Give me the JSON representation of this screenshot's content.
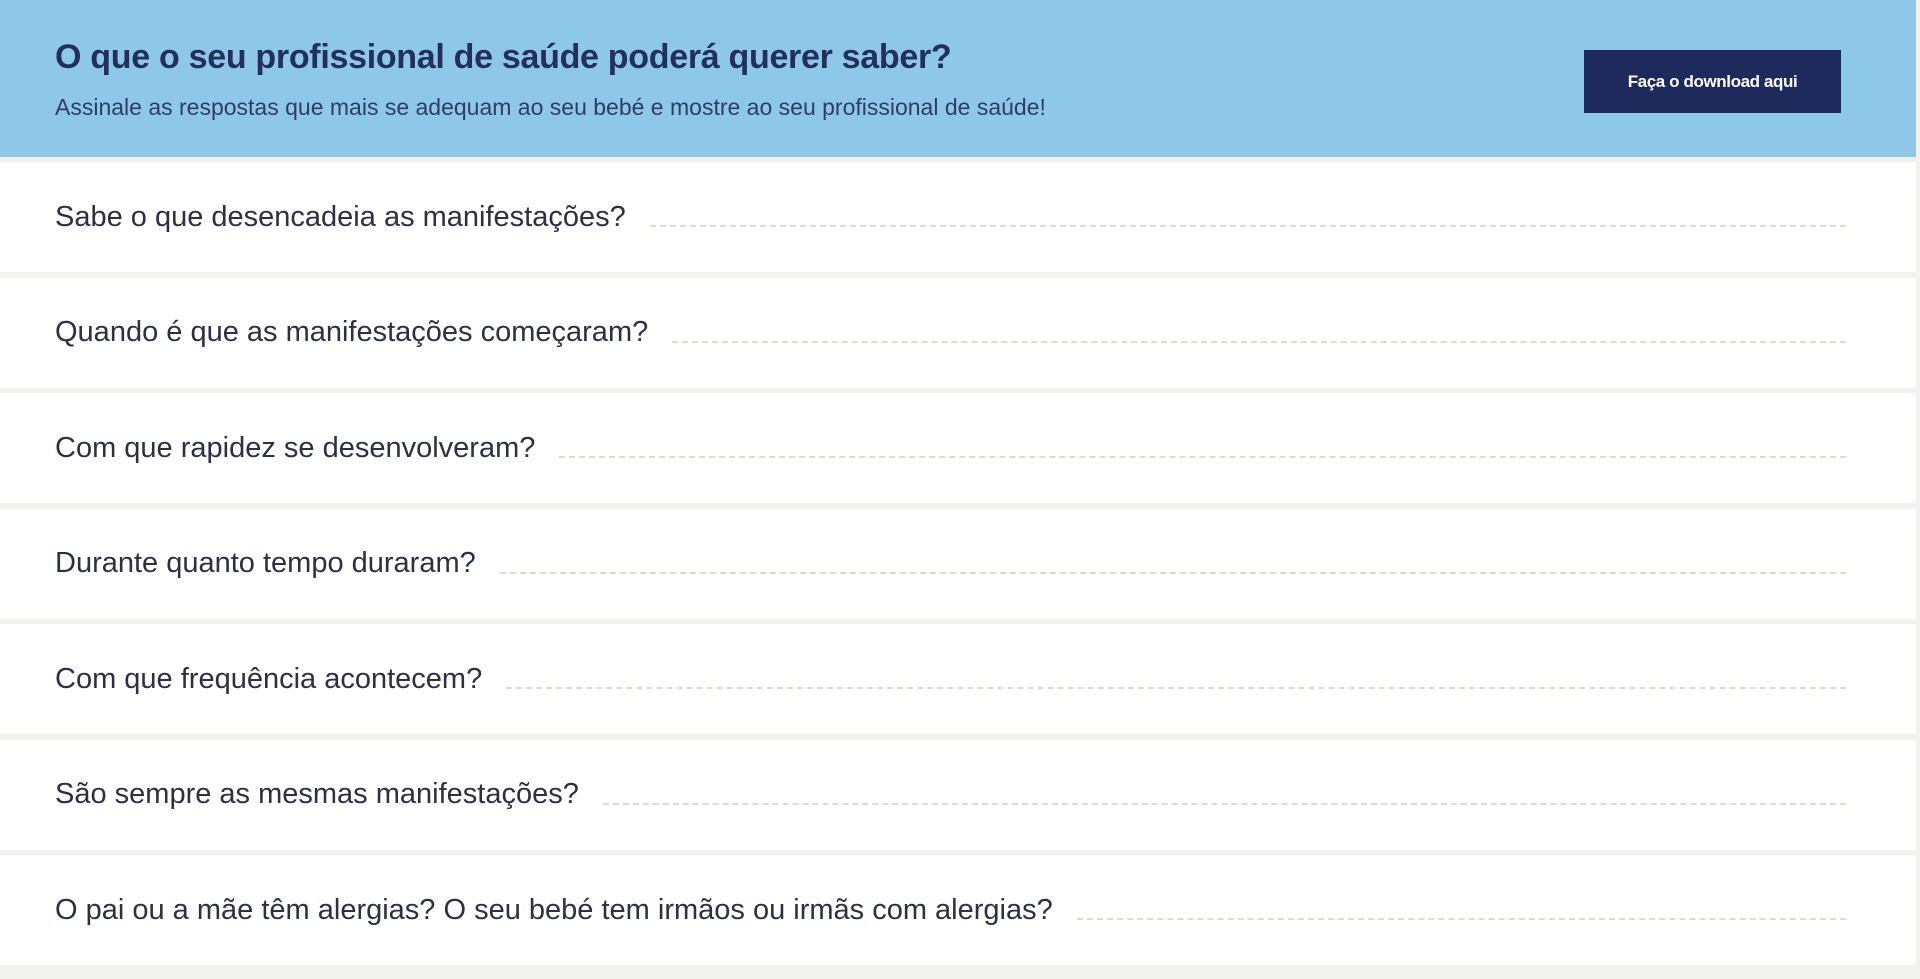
{
  "header": {
    "title": "O que o seu profissional de saúde poderá querer saber?",
    "subtitle": "Assinale as respostas que mais se adequam ao seu bebé e mostre ao seu profissional de saúde!",
    "download_label": "Faça o download aqui"
  },
  "questions": [
    "Sabe o que desencadeia as manifestações?",
    "Quando é que as manifestações começaram?",
    "Com que rapidez se desenvolveram?",
    "Durante quanto tempo duraram?",
    "Com que frequência acontecem?",
    "São sempre as mesmas manifestações?",
    "O pai ou a mãe têm alergias? O seu bebé tem irmãos ou irmãs com alergias?"
  ],
  "colors": {
    "header_bg": "#8ec8e8",
    "button_bg": "#1f2a5c",
    "title": "#23305a"
  }
}
